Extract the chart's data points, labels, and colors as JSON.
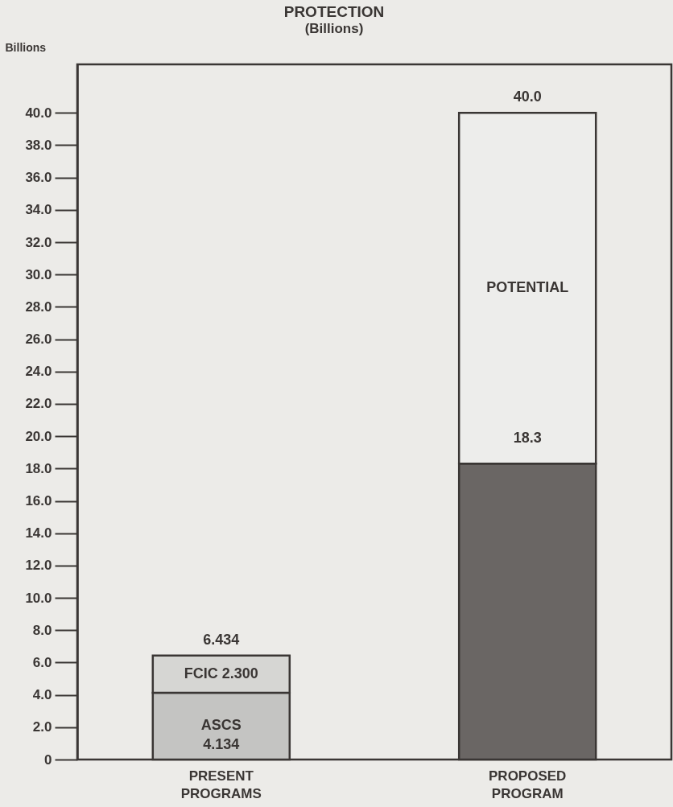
{
  "chart_data": {
    "type": "bar",
    "title": "PROTECTION",
    "subtitle": "(Billions)",
    "ylabel": "Billions",
    "categories": [
      "PRESENT PROGRAMS",
      "PROPOSED PROGRAM"
    ],
    "stacked": true,
    "series": [
      {
        "name": "ASCS",
        "color": "#c4c4c2",
        "values": [
          4.134,
          null
        ],
        "value_labels": [
          "4.134",
          null
        ]
      },
      {
        "name": "FCIC",
        "color": "#d6d6d3",
        "values": [
          2.3,
          null
        ],
        "value_labels": [
          "2.300",
          null
        ]
      },
      {
        "color": "#6a6664",
        "values": [
          null,
          18.3
        ],
        "value_labels": [
          null,
          "18.3"
        ]
      },
      {
        "name": "POTENTIAL",
        "color": "#ededeb",
        "values": [
          null,
          21.7
        ]
      }
    ],
    "totals": [
      "6.434",
      "40.0"
    ],
    "ylim": [
      0,
      43
    ],
    "yticks": [
      0,
      {
        "value": 2,
        "label": "2.0"
      },
      {
        "value": 4,
        "label": "4.0"
      },
      {
        "value": 6,
        "label": "6.0"
      },
      {
        "value": 8,
        "label": "8.0"
      },
      {
        "value": 10,
        "label": "10.0"
      },
      {
        "value": 12,
        "label": "12.0"
      },
      {
        "value": 14,
        "label": "14.0"
      },
      {
        "value": 16,
        "label": "16.0"
      },
      {
        "value": 18,
        "label": "18.0"
      },
      {
        "value": 20,
        "label": "20.0"
      },
      {
        "value": 22,
        "label": "22.0"
      },
      {
        "value": 24,
        "label": "24.0"
      },
      {
        "value": 26,
        "label": "26.0"
      },
      {
        "value": 28,
        "label": "28.0"
      },
      {
        "value": 30,
        "label": "30.0"
      },
      {
        "value": 32,
        "label": "32.0"
      },
      {
        "value": 34,
        "label": "34.0"
      },
      {
        "value": 36,
        "label": "36.0"
      },
      {
        "value": 38,
        "label": "38.0"
      },
      {
        "value": 40,
        "label": "40.0"
      }
    ],
    "grid": false,
    "legend": false
  }
}
